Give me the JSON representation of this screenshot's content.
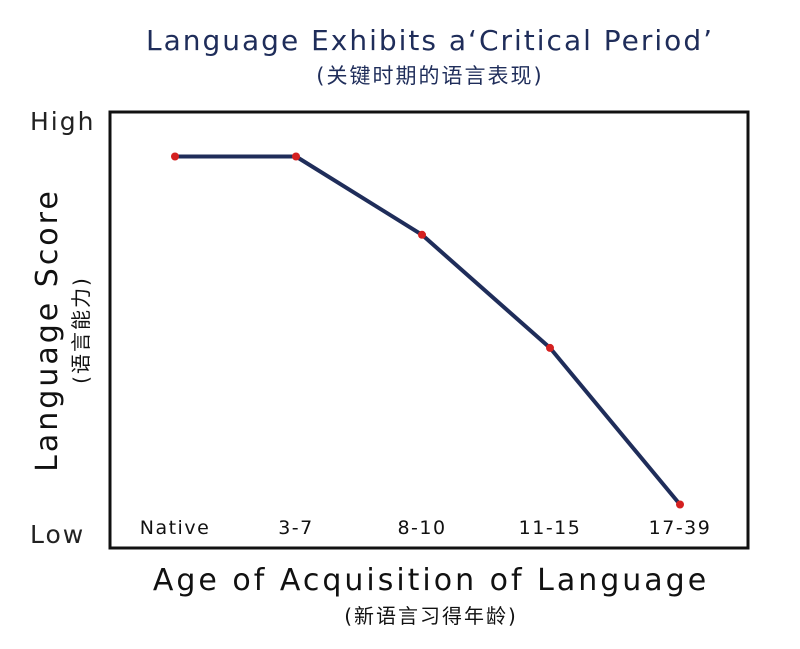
{
  "chart_data": {
    "type": "line",
    "title": "Language Exhibits a‘Critical Period’",
    "subtitle": "(关键时期的语言表现)",
    "xlabel": "Age of Acquisition of Language",
    "xlabel_sub": "(新语言习得年龄)",
    "ylabel": "Language Score",
    "ylabel_sub": "(语言能力)",
    "y_tick_labels": [
      "Low",
      "High"
    ],
    "categories": [
      "Native",
      "3-7",
      "8-10",
      "11-15",
      "17-39"
    ],
    "values": [
      0.9,
      0.9,
      0.72,
      0.46,
      0.1
    ],
    "ylim": [
      0,
      1
    ],
    "grid": false,
    "line_color": "#1f2d5a",
    "marker_color": "#d42020"
  }
}
